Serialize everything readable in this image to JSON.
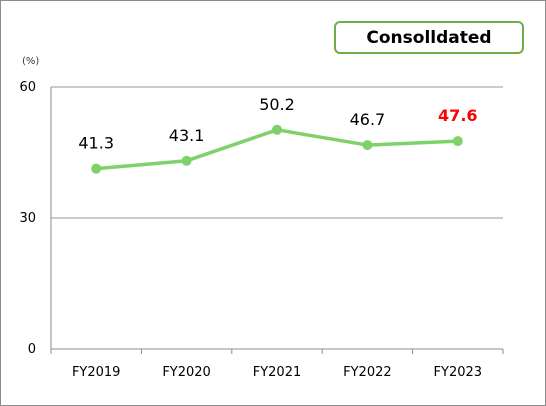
{
  "badge": {
    "label": "Consolldated"
  },
  "chart_data": {
    "type": "line",
    "categories": [
      "FY2019",
      "FY2020",
      "FY2021",
      "FY2022",
      "FY2023"
    ],
    "series": [
      {
        "values": [
          41.3,
          43.1,
          50.2,
          46.7,
          47.6
        ]
      }
    ],
    "data_labels": [
      "41.3",
      "43.1",
      "50.2",
      "46.7",
      "47.6"
    ],
    "highlight_index": 4,
    "yunit": "(%)",
    "ylim": [
      0,
      60
    ],
    "yticks": [
      "0",
      "30",
      "60"
    ],
    "ytick_values": [
      0,
      30,
      60
    ],
    "grid": true,
    "colors": {
      "line": "#7fd16b",
      "marker": "#7fd16b",
      "grid": "#999999",
      "axis": "#8c8c8c",
      "highlight_label": "#ff0000",
      "badge_border": "#70ad47"
    }
  }
}
